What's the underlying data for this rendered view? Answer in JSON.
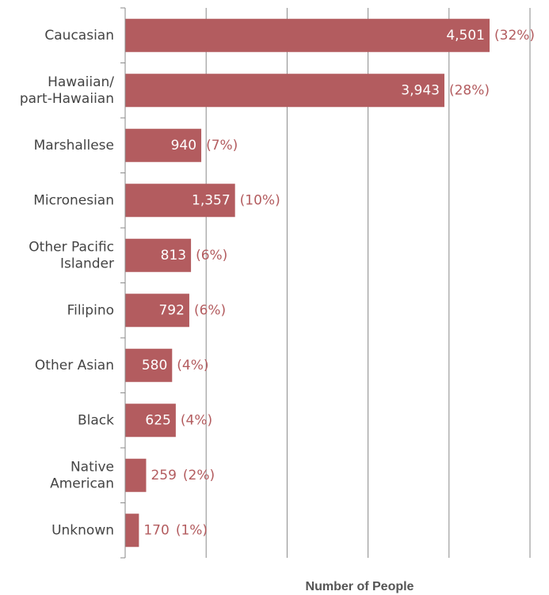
{
  "chart_data": {
    "type": "bar",
    "orientation": "horizontal",
    "xlabel": "Number of People",
    "categories": [
      "Caucasian",
      "Hawaiian/\npart-Hawaiian",
      "Marshallese",
      "Micronesian",
      "Other Pacific\nIslander",
      "Filipino",
      "Other Asian",
      "Black",
      "Native\nAmerican",
      "Unknown"
    ],
    "values": [
      4501,
      3943,
      940,
      1357,
      813,
      792,
      580,
      625,
      259,
      170
    ],
    "value_labels": [
      "4,501",
      "3,943",
      "940",
      "1,357",
      "813",
      "792",
      "580",
      "625",
      "259",
      "170"
    ],
    "percent_labels": [
      "(32%)",
      "(28%)",
      "(7%)",
      "(10%)",
      "(6%)",
      "(6%)",
      "(4%)",
      "(4%)",
      "(2%)",
      "(1%)"
    ],
    "color": "#b35c5f",
    "xlim": [
      0,
      5000
    ],
    "xticks": [
      0,
      1000,
      2000,
      3000,
      4000,
      5000
    ],
    "grid": true
  }
}
